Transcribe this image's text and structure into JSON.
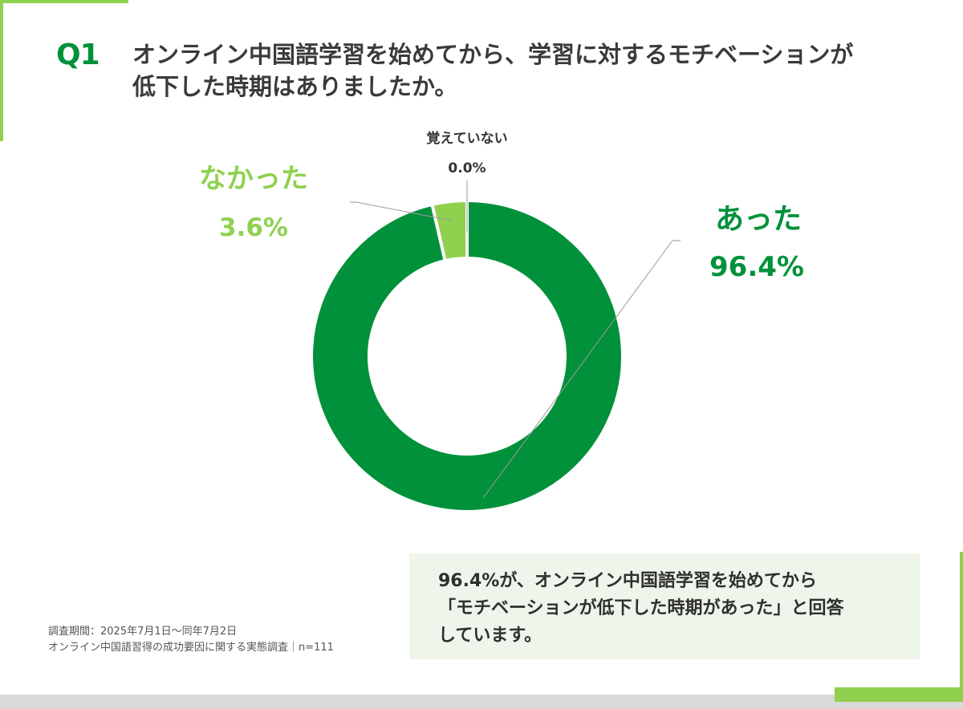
{
  "colors": {
    "accent": "#8fd14f",
    "dark_green": "#00913a",
    "light_green": "#8fd14f",
    "leader_line": "#9a9a9a"
  },
  "header": {
    "q_label": "Q1",
    "question_line1": "オンライン中国語学習を始めてから、学習に対するモチベーションが",
    "question_line2": "低下した時期はありましたか。"
  },
  "chart_data": {
    "type": "pie",
    "categories": [
      "あった",
      "なかった",
      "覚えていない"
    ],
    "values": [
      96.4,
      3.6,
      0.0
    ],
    "value_labels": [
      "96.4%",
      "3.6%",
      "0.0%"
    ],
    "colors": [
      "#00913a",
      "#8fd14f",
      "#8fd14f"
    ]
  },
  "note": {
    "line1": "96.4%が、オンライン中国語学習を始めてから",
    "line2": "「モチベーションが低下した時期があった」と回答",
    "line3": "しています。"
  },
  "source": {
    "line1": "調査期間：2025年7月1日〜同年7月2日",
    "line2": "オンライン中国語習得の成功要因に関する実態調査｜n=111"
  }
}
